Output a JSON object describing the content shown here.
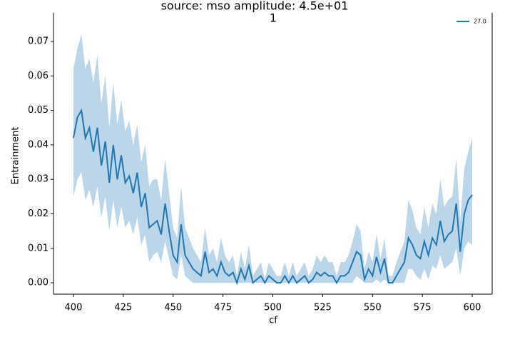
{
  "chart_data": {
    "type": "line",
    "title": "source: mso amplitude: 4.5e+01",
    "subtitle": "1",
    "xlabel": "cf",
    "ylabel": "Entrainment",
    "x": [
      400,
      402,
      404,
      406,
      408,
      410,
      412,
      414,
      416,
      418,
      420,
      422,
      424,
      426,
      428,
      430,
      432,
      434,
      436,
      438,
      440,
      442,
      444,
      446,
      448,
      450,
      452,
      454,
      456,
      458,
      460,
      462,
      464,
      466,
      468,
      470,
      472,
      474,
      476,
      478,
      480,
      482,
      484,
      486,
      488,
      490,
      492,
      494,
      496,
      498,
      500,
      502,
      504,
      506,
      508,
      510,
      512,
      514,
      516,
      518,
      520,
      522,
      524,
      526,
      528,
      530,
      532,
      534,
      536,
      538,
      540,
      542,
      544,
      546,
      548,
      550,
      552,
      554,
      556,
      558,
      560,
      562,
      564,
      566,
      568,
      570,
      572,
      574,
      576,
      578,
      580,
      582,
      584,
      586,
      588,
      590,
      592,
      594,
      596,
      598,
      600
    ],
    "series": [
      {
        "name": "27.0",
        "color": "#1f77b4",
        "values": [
          0.042,
          0.048,
          0.05,
          0.042,
          0.045,
          0.038,
          0.045,
          0.034,
          0.041,
          0.029,
          0.04,
          0.03,
          0.037,
          0.029,
          0.031,
          0.026,
          0.032,
          0.022,
          0.026,
          0.016,
          0.017,
          0.018,
          0.014,
          0.023,
          0.015,
          0.008,
          0.006,
          0.017,
          0.008,
          0.006,
          0.004,
          0.003,
          0.002,
          0.009,
          0.003,
          0.004,
          0.002,
          0.006,
          0.003,
          0.002,
          0.003,
          0,
          0.004,
          0.001,
          0.005,
          0,
          0.001,
          0.002,
          0,
          0.002,
          0.001,
          0,
          0,
          0.002,
          0,
          0.002,
          0,
          0.001,
          0.002,
          0,
          0.001,
          0.003,
          0.002,
          0.003,
          0.002,
          0.002,
          0,
          0.002,
          0.002,
          0.003,
          0.006,
          0.009,
          0.008,
          0.001,
          0.004,
          0.002,
          0.0075,
          0.003,
          0.007,
          0,
          0,
          0.002,
          0.004,
          0.006,
          0.013,
          0.011,
          0.008,
          0.007,
          0.012,
          0.008,
          0.013,
          0.011,
          0.018,
          0.012,
          0.014,
          0.015,
          0.023,
          0.009,
          0.02,
          0.024,
          0.0255
        ],
        "lower": [
          0.025,
          0.03,
          0.032,
          0.024,
          0.027,
          0.022,
          0.028,
          0.019,
          0.025,
          0.015,
          0.024,
          0.016,
          0.022,
          0.016,
          0.018,
          0.014,
          0.019,
          0.011,
          0.014,
          0.006,
          0.008,
          0.009,
          0.006,
          0.012,
          0.007,
          0.002,
          0.001,
          0.008,
          0.002,
          0.001,
          0,
          0,
          0,
          0,
          0,
          0,
          0,
          0,
          0,
          0,
          0,
          0,
          0,
          0,
          0,
          0,
          0,
          0,
          0,
          0,
          0,
          0,
          0,
          0,
          0,
          0,
          0,
          0,
          0,
          0,
          0,
          0,
          0,
          0,
          0,
          0,
          0,
          0,
          0,
          0,
          0,
          0.002,
          0.001,
          0,
          0,
          0,
          0.001,
          0,
          0.001,
          0,
          0,
          0,
          0,
          0,
          0.004,
          0.004,
          0.002,
          0.001,
          0.004,
          0.001,
          0.005,
          0.004,
          0.008,
          0.004,
          0.005,
          0.006,
          0.01,
          0.002,
          0.01,
          0.012,
          0.011
        ],
        "upper": [
          0.062,
          0.068,
          0.072,
          0.062,
          0.065,
          0.058,
          0.066,
          0.052,
          0.06,
          0.045,
          0.058,
          0.046,
          0.053,
          0.044,
          0.047,
          0.04,
          0.046,
          0.035,
          0.04,
          0.028,
          0.03,
          0.03,
          0.024,
          0.036,
          0.026,
          0.016,
          0.013,
          0.028,
          0.016,
          0.013,
          0.01,
          0.008,
          0.006,
          0.016,
          0.008,
          0.01,
          0.006,
          0.013,
          0.008,
          0.006,
          0.008,
          0.002,
          0.009,
          0.004,
          0.011,
          0.002,
          0.004,
          0.006,
          0.001,
          0.006,
          0.004,
          0.002,
          0.002,
          0.006,
          0.002,
          0.006,
          0.002,
          0.004,
          0.006,
          0.002,
          0.004,
          0.008,
          0.006,
          0.008,
          0.006,
          0.006,
          0.002,
          0.006,
          0.006,
          0.008,
          0.012,
          0.017,
          0.015,
          0.004,
          0.009,
          0.006,
          0.014,
          0.007,
          0.013,
          0.002,
          0.002,
          0.006,
          0.009,
          0.012,
          0.024,
          0.021,
          0.016,
          0.014,
          0.022,
          0.016,
          0.023,
          0.02,
          0.03,
          0.022,
          0.024,
          0.025,
          0.036,
          0.018,
          0.033,
          0.038,
          0.042
        ]
      }
    ],
    "xlim": [
      390,
      610
    ],
    "xticks": [
      400,
      425,
      450,
      475,
      500,
      525,
      550,
      575,
      600
    ],
    "ylim": [
      -0.0033,
      0.0783
    ],
    "yticks": [
      {
        "value": 0,
        "label": "0.00"
      },
      0.01,
      0.02,
      0.03,
      0.04,
      0.05,
      0.06,
      0.07
    ],
    "legend": "upper right"
  }
}
